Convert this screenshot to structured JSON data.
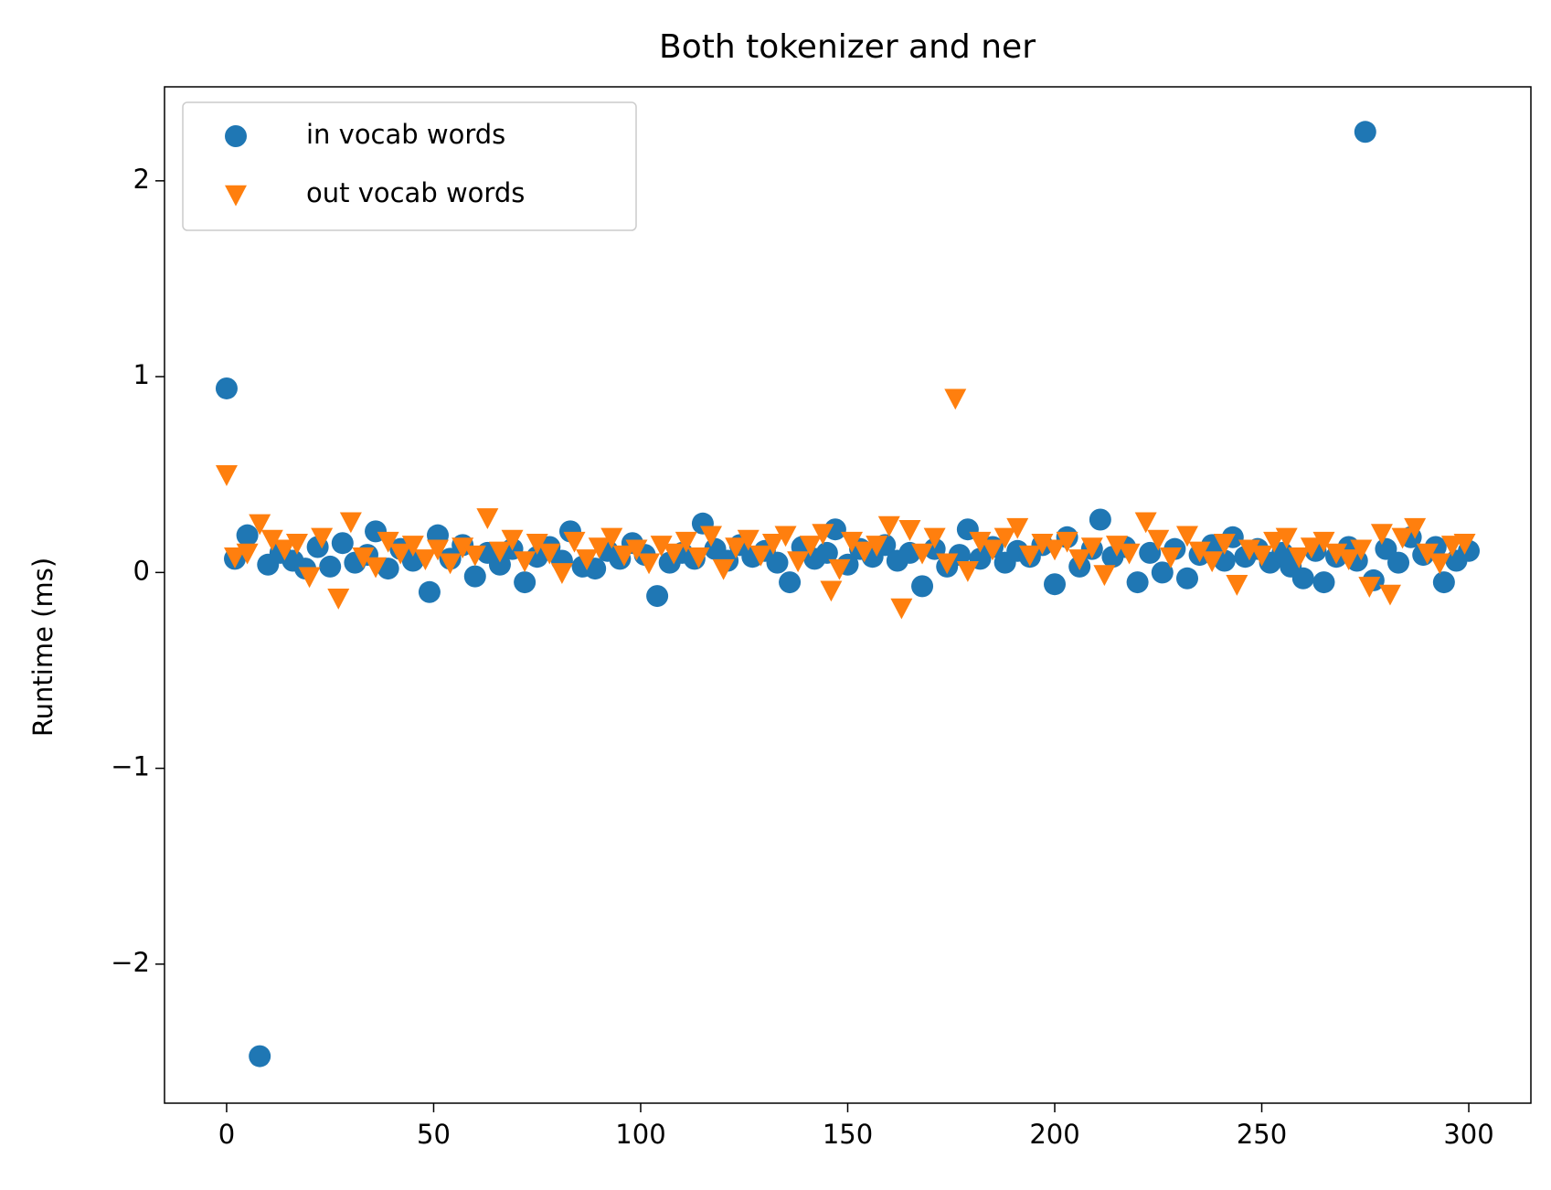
{
  "chart_data": {
    "type": "scatter",
    "title": "Both tokenizer and ner",
    "y_label": "Runtime (ms)",
    "xlim": [
      -15,
      315
    ],
    "ylim": [
      -2.71,
      2.48
    ],
    "xticks": [
      0,
      50,
      100,
      150,
      200,
      250,
      300
    ],
    "yticks": [
      {
        "value": -2,
        "label": "−2"
      },
      {
        "value": -1,
        "label": "−1"
      },
      0,
      1,
      2
    ],
    "legend": "upper left",
    "series": [
      {
        "name": "in vocab words",
        "color": "#1f77b4",
        "marker": "circle",
        "x": [
          0,
          2,
          5,
          8,
          10,
          13,
          16,
          19,
          22,
          25,
          28,
          31,
          34,
          36,
          39,
          42,
          45,
          49,
          51,
          54,
          57,
          60,
          63,
          66,
          69,
          72,
          75,
          78,
          81,
          83,
          86,
          89,
          92,
          95,
          98,
          101,
          104,
          107,
          110,
          113,
          115,
          118,
          121,
          124,
          127,
          130,
          133,
          136,
          139,
          142,
          145,
          147,
          150,
          153,
          156,
          159,
          162,
          165,
          168,
          171,
          174,
          177,
          179,
          182,
          185,
          188,
          191,
          194,
          197,
          200,
          203,
          206,
          209,
          211,
          214,
          217,
          220,
          223,
          226,
          229,
          232,
          235,
          238,
          241,
          243,
          246,
          249,
          252,
          255,
          257,
          260,
          263,
          265,
          268,
          271,
          273,
          275,
          277,
          280,
          283,
          286,
          289,
          292,
          294,
          297,
          300
        ],
        "values": [
          0.94,
          0.07,
          0.19,
          -2.47,
          0.04,
          0.1,
          0.06,
          0.02,
          0.13,
          0.03,
          0.15,
          0.05,
          0.09,
          0.21,
          0.02,
          0.12,
          0.06,
          -0.1,
          0.19,
          0.07,
          0.14,
          -0.02,
          0.1,
          0.04,
          0.12,
          -0.05,
          0.08,
          0.13,
          0.06,
          0.21,
          0.03,
          0.02,
          0.11,
          0.07,
          0.15,
          0.09,
          -0.12,
          0.05,
          0.1,
          0.07,
          0.25,
          0.12,
          0.06,
          0.14,
          0.08,
          0.11,
          0.05,
          -0.05,
          0.13,
          0.07,
          0.1,
          0.22,
          0.04,
          0.12,
          0.08,
          0.14,
          0.06,
          0.1,
          -0.07,
          0.12,
          0.03,
          0.09,
          0.22,
          0.07,
          0.13,
          0.05,
          0.11,
          0.08,
          0.14,
          -0.06,
          0.18,
          0.03,
          0.12,
          0.27,
          0.08,
          0.13,
          -0.05,
          0.1,
          0.0,
          0.12,
          -0.03,
          0.09,
          0.14,
          0.06,
          0.18,
          0.08,
          0.12,
          0.05,
          0.1,
          0.03,
          -0.03,
          0.11,
          -0.05,
          0.08,
          0.13,
          0.06,
          2.25,
          -0.04,
          0.12,
          0.05,
          0.18,
          0.09,
          0.13,
          -0.05,
          0.06,
          0.11
        ]
      },
      {
        "name": "out vocab words",
        "color": "#ff7f0e",
        "marker": "triangle-down",
        "x": [
          0,
          2,
          5,
          8,
          11,
          14,
          17,
          20,
          23,
          27,
          30,
          33,
          36,
          39,
          42,
          45,
          48,
          51,
          54,
          57,
          60,
          63,
          66,
          69,
          72,
          75,
          78,
          81,
          84,
          87,
          90,
          93,
          96,
          99,
          102,
          105,
          108,
          111,
          114,
          117,
          120,
          123,
          126,
          129,
          132,
          135,
          138,
          141,
          144,
          146,
          148,
          151,
          154,
          157,
          160,
          163,
          165,
          168,
          171,
          174,
          176,
          179,
          182,
          185,
          188,
          191,
          194,
          197,
          200,
          203,
          206,
          209,
          212,
          215,
          218,
          222,
          225,
          228,
          232,
          235,
          238,
          241,
          244,
          247,
          250,
          253,
          256,
          259,
          262,
          265,
          268,
          271,
          274,
          276,
          279,
          281,
          284,
          287,
          290,
          293,
          296,
          299
        ],
        "values": [
          0.5,
          0.08,
          0.1,
          0.25,
          0.17,
          0.12,
          0.15,
          -0.02,
          0.18,
          -0.13,
          0.26,
          0.08,
          0.03,
          0.16,
          0.1,
          0.14,
          0.07,
          0.12,
          0.05,
          0.13,
          0.09,
          0.28,
          0.11,
          0.17,
          0.06,
          0.15,
          0.1,
          0.0,
          0.16,
          0.07,
          0.13,
          0.18,
          0.09,
          0.12,
          0.05,
          0.14,
          0.1,
          0.16,
          0.08,
          0.19,
          0.02,
          0.13,
          0.17,
          0.09,
          0.15,
          0.19,
          0.06,
          0.14,
          0.2,
          -0.09,
          0.02,
          0.16,
          0.11,
          0.14,
          0.24,
          -0.18,
          0.22,
          0.1,
          0.18,
          0.05,
          0.89,
          0.01,
          0.16,
          0.12,
          0.18,
          0.23,
          0.09,
          0.15,
          0.12,
          0.16,
          0.07,
          0.13,
          -0.01,
          0.14,
          0.1,
          0.26,
          0.17,
          0.08,
          0.19,
          0.11,
          0.06,
          0.15,
          -0.06,
          0.12,
          0.09,
          0.16,
          0.18,
          0.08,
          0.13,
          0.16,
          0.1,
          0.07,
          0.12,
          -0.07,
          0.2,
          -0.11,
          0.18,
          0.23,
          0.1,
          0.05,
          0.14,
          0.15
        ]
      }
    ]
  }
}
